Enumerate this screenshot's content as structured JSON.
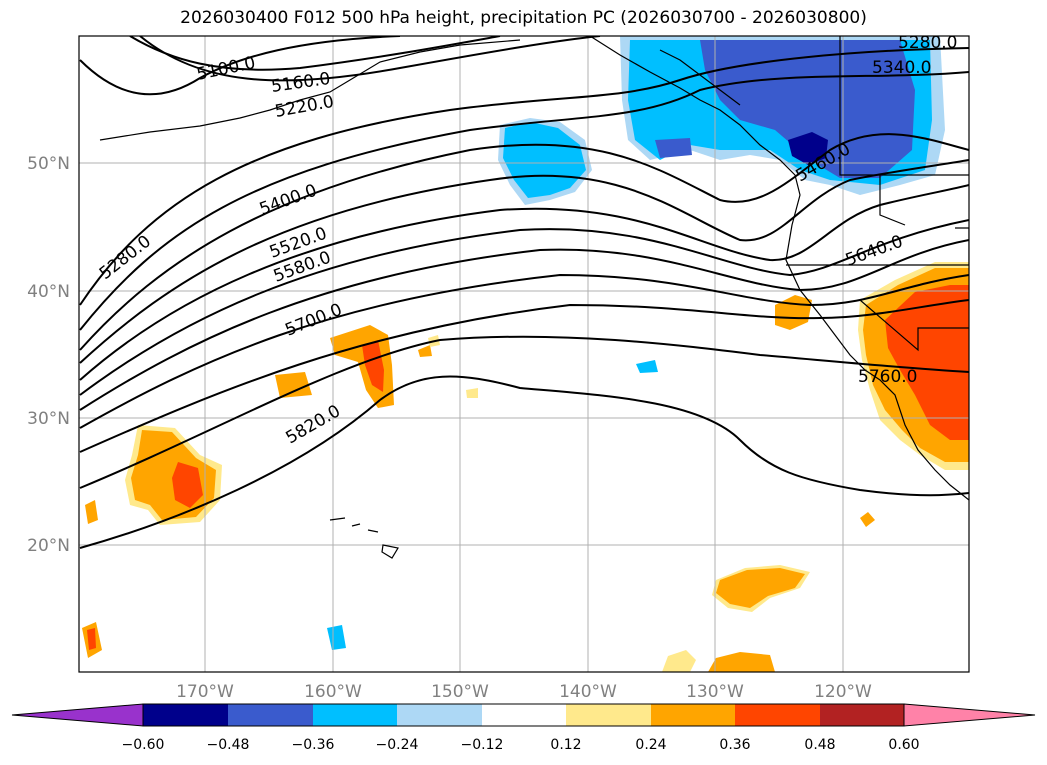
{
  "title": "2026030400 F012 500 hPa height, precipitation PC (2026030700 - 2026030800)",
  "map": {
    "lon_range": [
      -180,
      -110
    ],
    "lat_range": [
      10,
      60
    ],
    "lat_labels": [
      "20°N",
      "30°N",
      "40°N",
      "50°N"
    ],
    "lon_labels": [
      "170°W",
      "160°W",
      "150°W",
      "140°W",
      "130°W",
      "120°W"
    ],
    "contour_labels": [
      "5100.0",
      "5160.0",
      "5220.0",
      "5280.0",
      "5280.0",
      "5340.0",
      "5400.0",
      "5460.0",
      "5520.0",
      "5580.0",
      "5640.0",
      "5700.0",
      "5760.0",
      "5820.0"
    ]
  },
  "colorbar": {
    "tick_labels": [
      "−0.60",
      "−0.48",
      "−0.36",
      "−0.24",
      "−0.12",
      "0.12",
      "0.24",
      "0.36",
      "0.48",
      "0.60"
    ],
    "colors": [
      "#9932cc",
      "#00008b",
      "#3a5bcd",
      "#00bfff",
      "#add8f5",
      "#ffffff",
      "#ffe98c",
      "#ffa500",
      "#ff4500",
      "#b22222",
      "#ff82a8"
    ]
  }
}
